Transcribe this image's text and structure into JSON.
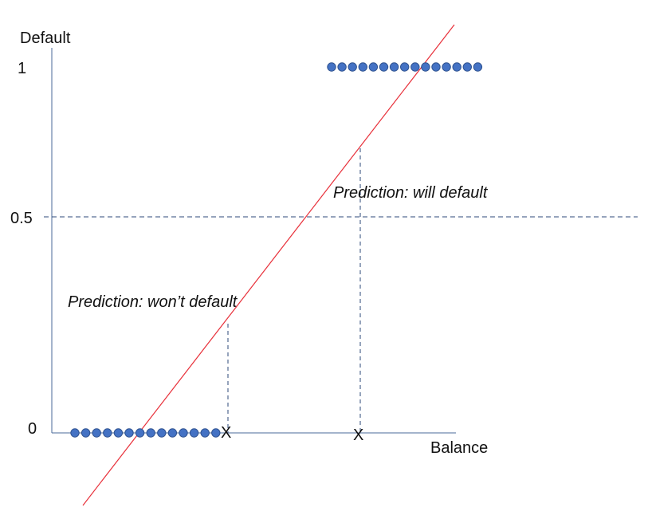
{
  "y_axis": {
    "label": "Default",
    "ticks": [
      "1",
      "0.5",
      "0"
    ]
  },
  "x_axis": {
    "label": "Balance"
  },
  "annotations": {
    "will_default": "Prediction: will default",
    "wont_default": "Prediction: won’t default"
  },
  "markers": {
    "x_mark": "X"
  },
  "threshold_value": 0.5,
  "point_groups": {
    "default_0_count": 14,
    "default_1_count": 15
  },
  "colors": {
    "axis": "#4a6a9a",
    "regression_line": "#e8303a",
    "threshold_dash": "#2e4a7a",
    "points_fill": "#4472c4",
    "points_stroke": "#2f528f"
  }
}
